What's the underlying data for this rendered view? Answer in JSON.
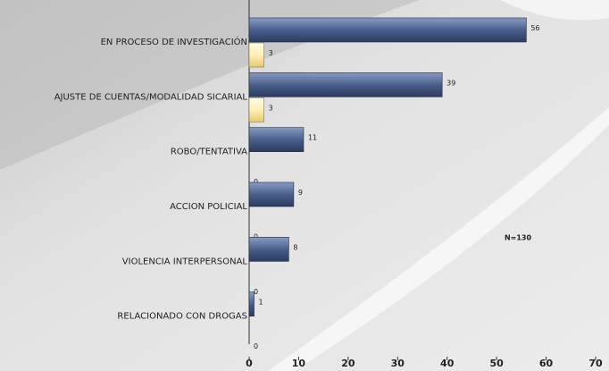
{
  "chart_data": {
    "type": "hbar",
    "categories": [
      "EN PROCESO DE INVESTIGACIÓN",
      "AJUSTE DE CUENTAS/MODALIDAD SICARIAL",
      "ROBO/TENTATIVA",
      "ACCION POLICIAL",
      "VIOLENCIA INTERPERSONAL",
      "RELACIONADO CON DROGAS"
    ],
    "series": [
      {
        "color": "#4a5f8c",
        "values": [
          56,
          39,
          11,
          9,
          8,
          1
        ]
      },
      {
        "color": "#fff0b8",
        "values": [
          3,
          3,
          0,
          0,
          0,
          0
        ]
      }
    ],
    "xlim": [
      0,
      70
    ],
    "xticks": [
      0,
      10,
      20,
      30,
      40,
      50,
      60,
      70
    ],
    "annotation": "N=130"
  }
}
